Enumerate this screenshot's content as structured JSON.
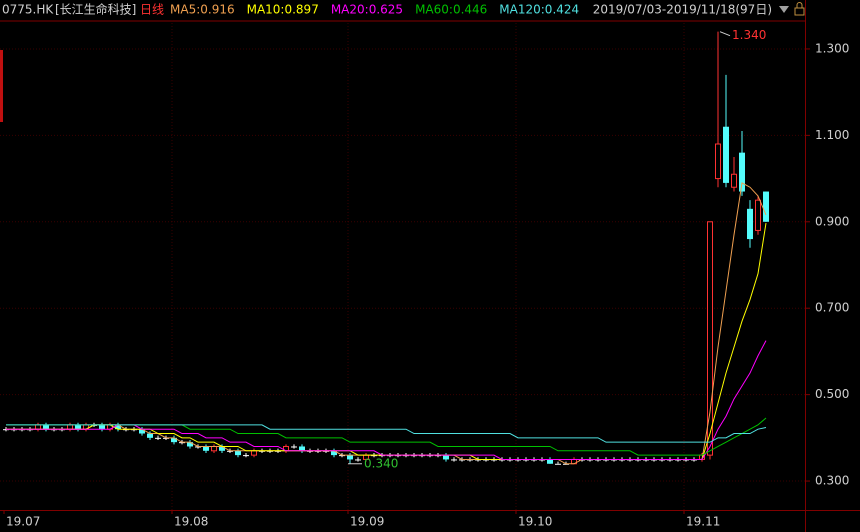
{
  "chart_data": {
    "type": "candlestick",
    "symbol": "0775.HK",
    "name": "[长江生命科技]",
    "period": "日线",
    "range": "2019/07/03-2019/11/18(97日)",
    "up_color": "#ff3232",
    "down_color": "#54fcfc",
    "flat_color": "#ffffff",
    "high_label": "1.340",
    "low_label": "0.340",
    "ylim": [
      0.233,
      1.367
    ],
    "yticks": [
      {
        "value": 0.3,
        "label": "0.300"
      },
      {
        "value": 0.5,
        "label": "0.500"
      },
      {
        "value": 0.7,
        "label": "0.700"
      },
      {
        "value": 0.9,
        "label": "0.900"
      },
      {
        "value": 1.1,
        "label": "1.100"
      },
      {
        "value": 1.3,
        "label": "1.300"
      }
    ],
    "xticks": [
      {
        "value": 0,
        "label": "19.07"
      },
      {
        "value": 21,
        "label": "19.08"
      },
      {
        "value": 43,
        "label": "19.09"
      },
      {
        "value": 64,
        "label": "19.10"
      },
      {
        "value": 85,
        "label": "19.11"
      }
    ],
    "grid": true,
    "ohlc": [
      [
        0.42,
        0.425,
        0.415,
        0.42
      ],
      [
        0.42,
        0.425,
        0.415,
        0.42
      ],
      [
        0.42,
        0.425,
        0.415,
        0.42
      ],
      [
        0.42,
        0.425,
        0.415,
        0.42
      ],
      [
        0.42,
        0.435,
        0.415,
        0.43
      ],
      [
        0.43,
        0.435,
        0.415,
        0.42
      ],
      [
        0.42,
        0.425,
        0.415,
        0.42
      ],
      [
        0.42,
        0.425,
        0.415,
        0.42
      ],
      [
        0.42,
        0.435,
        0.415,
        0.43
      ],
      [
        0.43,
        0.435,
        0.415,
        0.42
      ],
      [
        0.42,
        0.435,
        0.415,
        0.43
      ],
      [
        0.43,
        0.435,
        0.425,
        0.43
      ],
      [
        0.43,
        0.435,
        0.415,
        0.42
      ],
      [
        0.42,
        0.435,
        0.415,
        0.43
      ],
      [
        0.43,
        0.435,
        0.415,
        0.42
      ],
      [
        0.42,
        0.425,
        0.415,
        0.42
      ],
      [
        0.42,
        0.425,
        0.415,
        0.42
      ],
      [
        0.42,
        0.425,
        0.405,
        0.41
      ],
      [
        0.41,
        0.415,
        0.395,
        0.4
      ],
      [
        0.4,
        0.405,
        0.395,
        0.4
      ],
      [
        0.4,
        0.405,
        0.395,
        0.4
      ],
      [
        0.4,
        0.405,
        0.385,
        0.39
      ],
      [
        0.39,
        0.395,
        0.385,
        0.39
      ],
      [
        0.39,
        0.395,
        0.375,
        0.38
      ],
      [
        0.38,
        0.385,
        0.375,
        0.38
      ],
      [
        0.38,
        0.385,
        0.365,
        0.37
      ],
      [
        0.37,
        0.385,
        0.365,
        0.38
      ],
      [
        0.38,
        0.385,
        0.365,
        0.37
      ],
      [
        0.37,
        0.375,
        0.365,
        0.37
      ],
      [
        0.37,
        0.375,
        0.355,
        0.36
      ],
      [
        0.36,
        0.365,
        0.355,
        0.36
      ],
      [
        0.36,
        0.375,
        0.355,
        0.37
      ],
      [
        0.37,
        0.375,
        0.365,
        0.37
      ],
      [
        0.37,
        0.375,
        0.365,
        0.37
      ],
      [
        0.37,
        0.375,
        0.365,
        0.37
      ],
      [
        0.37,
        0.385,
        0.365,
        0.38
      ],
      [
        0.38,
        0.385,
        0.375,
        0.38
      ],
      [
        0.38,
        0.385,
        0.365,
        0.37
      ],
      [
        0.37,
        0.375,
        0.365,
        0.37
      ],
      [
        0.37,
        0.375,
        0.365,
        0.37
      ],
      [
        0.37,
        0.375,
        0.365,
        0.37
      ],
      [
        0.37,
        0.375,
        0.355,
        0.36
      ],
      [
        0.36,
        0.365,
        0.355,
        0.36
      ],
      [
        0.36,
        0.365,
        0.34,
        0.35
      ],
      [
        0.35,
        0.355,
        0.345,
        0.35
      ],
      [
        0.35,
        0.365,
        0.345,
        0.36
      ],
      [
        0.36,
        0.365,
        0.355,
        0.36
      ],
      [
        0.36,
        0.365,
        0.355,
        0.36
      ],
      [
        0.36,
        0.365,
        0.355,
        0.36
      ],
      [
        0.36,
        0.365,
        0.355,
        0.36
      ],
      [
        0.36,
        0.365,
        0.355,
        0.36
      ],
      [
        0.36,
        0.365,
        0.355,
        0.36
      ],
      [
        0.36,
        0.365,
        0.355,
        0.36
      ],
      [
        0.36,
        0.365,
        0.355,
        0.36
      ],
      [
        0.36,
        0.365,
        0.355,
        0.36
      ],
      [
        0.36,
        0.365,
        0.345,
        0.35
      ],
      [
        0.35,
        0.355,
        0.345,
        0.35
      ],
      [
        0.35,
        0.355,
        0.345,
        0.35
      ],
      [
        0.35,
        0.355,
        0.345,
        0.35
      ],
      [
        0.35,
        0.355,
        0.345,
        0.35
      ],
      [
        0.35,
        0.355,
        0.345,
        0.35
      ],
      [
        0.35,
        0.355,
        0.345,
        0.35
      ],
      [
        0.35,
        0.355,
        0.345,
        0.35
      ],
      [
        0.35,
        0.355,
        0.345,
        0.35
      ],
      [
        0.35,
        0.355,
        0.345,
        0.35
      ],
      [
        0.35,
        0.355,
        0.345,
        0.35
      ],
      [
        0.35,
        0.355,
        0.345,
        0.35
      ],
      [
        0.35,
        0.355,
        0.345,
        0.35
      ],
      [
        0.35,
        0.355,
        0.34,
        0.34
      ],
      [
        0.34,
        0.345,
        0.34,
        0.34
      ],
      [
        0.34,
        0.345,
        0.34,
        0.34
      ],
      [
        0.34,
        0.355,
        0.34,
        0.35
      ],
      [
        0.35,
        0.355,
        0.345,
        0.35
      ],
      [
        0.35,
        0.355,
        0.345,
        0.35
      ],
      [
        0.35,
        0.355,
        0.345,
        0.35
      ],
      [
        0.35,
        0.355,
        0.345,
        0.35
      ],
      [
        0.35,
        0.355,
        0.345,
        0.35
      ],
      [
        0.35,
        0.355,
        0.345,
        0.35
      ],
      [
        0.35,
        0.355,
        0.345,
        0.35
      ],
      [
        0.35,
        0.355,
        0.345,
        0.35
      ],
      [
        0.35,
        0.355,
        0.345,
        0.35
      ],
      [
        0.35,
        0.355,
        0.345,
        0.35
      ],
      [
        0.35,
        0.355,
        0.345,
        0.35
      ],
      [
        0.35,
        0.355,
        0.345,
        0.35
      ],
      [
        0.35,
        0.355,
        0.345,
        0.35
      ],
      [
        0.35,
        0.355,
        0.345,
        0.35
      ],
      [
        0.35,
        0.355,
        0.345,
        0.35
      ],
      [
        0.35,
        0.365,
        0.345,
        0.36
      ],
      [
        0.36,
        0.9,
        0.35,
        0.9
      ],
      [
        1.0,
        1.34,
        0.98,
        1.08
      ],
      [
        1.12,
        1.24,
        0.98,
        0.99
      ],
      [
        0.98,
        1.05,
        0.97,
        1.01
      ],
      [
        1.06,
        1.11,
        0.96,
        0.97
      ],
      [
        0.93,
        0.95,
        0.84,
        0.86
      ],
      [
        0.88,
        0.96,
        0.87,
        0.95
      ],
      [
        0.97,
        0.97,
        0.9,
        0.9
      ]
    ],
    "series": [
      {
        "name": "MA5:0.916",
        "color": "#f0a050",
        "values": [
          0.42,
          0.42,
          0.42,
          0.42,
          0.42,
          0.42,
          0.42,
          0.42,
          0.42,
          0.42,
          0.42,
          0.43,
          0.43,
          0.43,
          0.43,
          0.42,
          0.42,
          0.42,
          0.41,
          0.41,
          0.4,
          0.4,
          0.39,
          0.39,
          0.38,
          0.38,
          0.38,
          0.38,
          0.37,
          0.37,
          0.37,
          0.37,
          0.37,
          0.37,
          0.37,
          0.37,
          0.37,
          0.37,
          0.37,
          0.37,
          0.37,
          0.37,
          0.36,
          0.36,
          0.36,
          0.36,
          0.36,
          0.36,
          0.36,
          0.36,
          0.36,
          0.36,
          0.36,
          0.36,
          0.36,
          0.36,
          0.36,
          0.35,
          0.35,
          0.35,
          0.35,
          0.35,
          0.35,
          0.35,
          0.35,
          0.35,
          0.35,
          0.35,
          0.35,
          0.35,
          0.34,
          0.34,
          0.35,
          0.35,
          0.35,
          0.35,
          0.35,
          0.35,
          0.35,
          0.35,
          0.35,
          0.35,
          0.35,
          0.35,
          0.35,
          0.35,
          0.35,
          0.35,
          0.46,
          0.61,
          0.74,
          0.87,
          0.99,
          0.98,
          0.96,
          0.916
        ]
      },
      {
        "name": "MA10:0.897",
        "color": "#ffff00",
        "values": [
          0.42,
          0.42,
          0.42,
          0.42,
          0.42,
          0.42,
          0.42,
          0.42,
          0.42,
          0.42,
          0.42,
          0.43,
          0.43,
          0.43,
          0.42,
          0.42,
          0.42,
          0.42,
          0.42,
          0.41,
          0.41,
          0.41,
          0.4,
          0.4,
          0.39,
          0.39,
          0.39,
          0.38,
          0.38,
          0.38,
          0.37,
          0.37,
          0.37,
          0.37,
          0.37,
          0.37,
          0.37,
          0.37,
          0.37,
          0.37,
          0.37,
          0.37,
          0.37,
          0.37,
          0.36,
          0.36,
          0.36,
          0.36,
          0.36,
          0.36,
          0.36,
          0.36,
          0.36,
          0.36,
          0.36,
          0.36,
          0.36,
          0.36,
          0.36,
          0.35,
          0.35,
          0.35,
          0.35,
          0.35,
          0.35,
          0.35,
          0.35,
          0.35,
          0.35,
          0.35,
          0.35,
          0.35,
          0.35,
          0.35,
          0.35,
          0.35,
          0.35,
          0.35,
          0.35,
          0.35,
          0.35,
          0.35,
          0.35,
          0.35,
          0.35,
          0.35,
          0.35,
          0.35,
          0.41,
          0.48,
          0.55,
          0.61,
          0.67,
          0.72,
          0.78,
          0.897
        ]
      },
      {
        "name": "MA20:0.625",
        "color": "#ff00ff",
        "values": [
          0.42,
          0.42,
          0.42,
          0.42,
          0.42,
          0.42,
          0.42,
          0.42,
          0.42,
          0.42,
          0.42,
          0.42,
          0.42,
          0.42,
          0.43,
          0.43,
          0.43,
          0.42,
          0.42,
          0.42,
          0.42,
          0.42,
          0.41,
          0.41,
          0.41,
          0.4,
          0.4,
          0.4,
          0.39,
          0.39,
          0.39,
          0.38,
          0.38,
          0.38,
          0.38,
          0.37,
          0.37,
          0.37,
          0.37,
          0.37,
          0.37,
          0.37,
          0.37,
          0.37,
          0.37,
          0.37,
          0.37,
          0.36,
          0.36,
          0.36,
          0.36,
          0.36,
          0.36,
          0.36,
          0.36,
          0.36,
          0.36,
          0.36,
          0.36,
          0.36,
          0.36,
          0.36,
          0.35,
          0.35,
          0.35,
          0.35,
          0.35,
          0.35,
          0.35,
          0.35,
          0.35,
          0.35,
          0.35,
          0.35,
          0.35,
          0.35,
          0.35,
          0.35,
          0.35,
          0.35,
          0.35,
          0.35,
          0.35,
          0.35,
          0.35,
          0.35,
          0.35,
          0.35,
          0.38,
          0.42,
          0.45,
          0.49,
          0.52,
          0.55,
          0.59,
          0.625
        ]
      },
      {
        "name": "MA60:0.446",
        "color": "#00c000",
        "values": [
          0.43,
          0.43,
          0.43,
          0.43,
          0.43,
          0.43,
          0.43,
          0.43,
          0.43,
          0.43,
          0.43,
          0.43,
          0.43,
          0.43,
          0.43,
          0.43,
          0.43,
          0.43,
          0.43,
          0.43,
          0.43,
          0.43,
          0.43,
          0.42,
          0.42,
          0.42,
          0.42,
          0.42,
          0.42,
          0.41,
          0.41,
          0.41,
          0.41,
          0.41,
          0.41,
          0.4,
          0.4,
          0.4,
          0.4,
          0.4,
          0.4,
          0.4,
          0.4,
          0.39,
          0.39,
          0.39,
          0.39,
          0.39,
          0.39,
          0.39,
          0.39,
          0.39,
          0.39,
          0.39,
          0.38,
          0.38,
          0.38,
          0.38,
          0.38,
          0.38,
          0.38,
          0.38,
          0.38,
          0.38,
          0.38,
          0.38,
          0.38,
          0.38,
          0.38,
          0.37,
          0.37,
          0.37,
          0.37,
          0.37,
          0.37,
          0.37,
          0.37,
          0.37,
          0.37,
          0.36,
          0.36,
          0.36,
          0.36,
          0.36,
          0.36,
          0.36,
          0.36,
          0.36,
          0.37,
          0.38,
          0.39,
          0.4,
          0.41,
          0.42,
          0.43,
          0.446
        ]
      },
      {
        "name": "MA120:0.424",
        "color": "#50e0e0",
        "values": [
          0.43,
          0.43,
          0.43,
          0.43,
          0.43,
          0.43,
          0.43,
          0.43,
          0.43,
          0.43,
          0.43,
          0.43,
          0.43,
          0.43,
          0.43,
          0.43,
          0.43,
          0.43,
          0.43,
          0.43,
          0.43,
          0.43,
          0.43,
          0.43,
          0.43,
          0.43,
          0.43,
          0.43,
          0.43,
          0.43,
          0.43,
          0.43,
          0.43,
          0.42,
          0.42,
          0.42,
          0.42,
          0.42,
          0.42,
          0.42,
          0.42,
          0.42,
          0.42,
          0.42,
          0.42,
          0.42,
          0.42,
          0.42,
          0.42,
          0.42,
          0.42,
          0.41,
          0.41,
          0.41,
          0.41,
          0.41,
          0.41,
          0.41,
          0.41,
          0.41,
          0.41,
          0.41,
          0.41,
          0.41,
          0.4,
          0.4,
          0.4,
          0.4,
          0.4,
          0.4,
          0.4,
          0.4,
          0.4,
          0.4,
          0.4,
          0.39,
          0.39,
          0.39,
          0.39,
          0.39,
          0.39,
          0.39,
          0.39,
          0.39,
          0.39,
          0.39,
          0.39,
          0.39,
          0.39,
          0.4,
          0.4,
          0.41,
          0.41,
          0.41,
          0.42,
          0.424
        ]
      }
    ]
  }
}
